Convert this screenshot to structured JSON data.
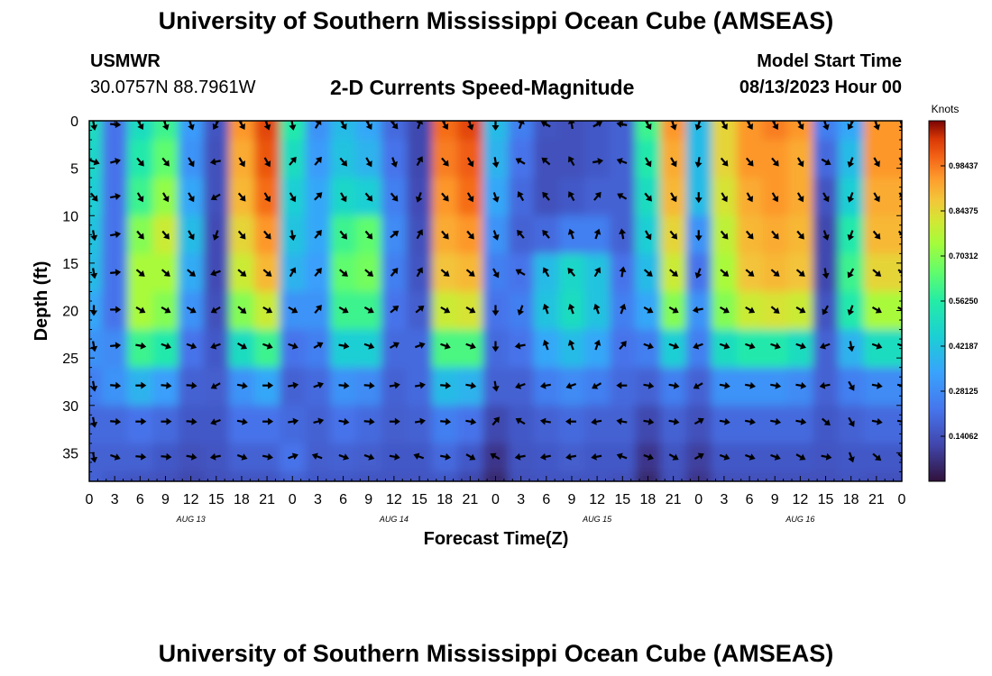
{
  "header": {
    "title_top": "University of Southern Mississippi Ocean Cube (AMSEAS)",
    "title_bottom": "University of Southern Mississippi Ocean Cube (AMSEAS)",
    "station": "USMWR",
    "coords": "30.0757N  88.7961W",
    "plot_title": "2-D Currents Speed-Magnitude",
    "model_start_label": "Model Start Time",
    "model_start_value": "08/13/2023 Hour 00"
  },
  "chart_data": {
    "type": "heatmap",
    "title": "2-D Currents Speed-Magnitude",
    "xlabel": "Forecast Time(Z)",
    "ylabel": "Depth (ft)",
    "x_ticks": [
      "0",
      "3",
      "6",
      "9",
      "12",
      "15",
      "18",
      "21",
      "0",
      "3",
      "6",
      "9",
      "12",
      "15",
      "18",
      "21",
      "0",
      "3",
      "6",
      "9",
      "12",
      "15",
      "18",
      "21",
      "0",
      "3",
      "6",
      "9",
      "12",
      "15",
      "18",
      "21",
      "0"
    ],
    "day_labels": [
      "AUG 13",
      "AUG 14",
      "AUG 15",
      "AUG 16"
    ],
    "y_ticks": [
      "0",
      "5",
      "10",
      "15",
      "20",
      "25",
      "30",
      "35"
    ],
    "ylim": [
      0,
      38
    ],
    "xlim_hours": [
      0,
      96
    ],
    "colorbar": {
      "units": "Knots",
      "range": [
        0,
        1.125
      ],
      "tick_values": [
        0.140625,
        0.28125,
        0.421875,
        0.5625,
        0.703125,
        0.84375,
        0.984375
      ],
      "tick_labels": [
        "0.14062",
        "0.28125",
        "0.42187",
        "0.56250",
        "0.70312",
        "0.84375",
        "0.98437"
      ]
    },
    "grid": false,
    "columns": [
      {
        "hour": 0,
        "speeds": [
          0.5,
          0.48,
          0.45,
          0.42,
          0.4,
          0.35,
          0.3,
          0.25,
          0.2,
          0.18,
          0.18
        ]
      },
      {
        "hour": 3,
        "speeds": [
          0.22,
          0.22,
          0.22,
          0.22,
          0.22,
          0.22,
          0.28,
          0.3,
          0.2,
          0.18,
          0.16
        ]
      },
      {
        "hour": 6,
        "speeds": [
          0.5,
          0.55,
          0.6,
          0.7,
          0.75,
          0.75,
          0.6,
          0.38,
          0.22,
          0.18,
          0.15
        ]
      },
      {
        "hour": 9,
        "speeds": [
          0.6,
          0.65,
          0.72,
          0.8,
          0.75,
          0.7,
          0.55,
          0.33,
          0.2,
          0.16,
          0.14
        ]
      },
      {
        "hour": 12,
        "speeds": [
          0.32,
          0.3,
          0.35,
          0.4,
          0.36,
          0.3,
          0.22,
          0.18,
          0.16,
          0.14,
          0.12
        ]
      },
      {
        "hour": 15,
        "speeds": [
          0.15,
          0.14,
          0.14,
          0.13,
          0.13,
          0.14,
          0.16,
          0.17,
          0.16,
          0.15,
          0.14
        ]
      },
      {
        "hour": 18,
        "speeds": [
          0.95,
          0.92,
          0.9,
          0.85,
          0.8,
          0.7,
          0.5,
          0.3,
          0.22,
          0.18,
          0.15
        ]
      },
      {
        "hour": 21,
        "speeds": [
          1.05,
          1.03,
          1.0,
          0.95,
          0.9,
          0.8,
          0.6,
          0.35,
          0.22,
          0.18,
          0.15
        ]
      },
      {
        "hour": 24,
        "speeds": [
          0.55,
          0.5,
          0.45,
          0.42,
          0.38,
          0.3,
          0.22,
          0.18,
          0.2,
          0.22,
          0.18
        ]
      },
      {
        "hour": 27,
        "speeds": [
          0.3,
          0.32,
          0.35,
          0.35,
          0.33,
          0.3,
          0.25,
          0.2,
          0.18,
          0.17,
          0.16
        ]
      },
      {
        "hour": 30,
        "speeds": [
          0.4,
          0.42,
          0.48,
          0.6,
          0.65,
          0.6,
          0.45,
          0.3,
          0.22,
          0.18,
          0.16
        ]
      },
      {
        "hour": 33,
        "speeds": [
          0.35,
          0.38,
          0.45,
          0.65,
          0.68,
          0.6,
          0.45,
          0.28,
          0.2,
          0.17,
          0.15
        ]
      },
      {
        "hour": 36,
        "speeds": [
          0.2,
          0.22,
          0.25,
          0.28,
          0.25,
          0.22,
          0.2,
          0.18,
          0.17,
          0.16,
          0.15
        ]
      },
      {
        "hour": 39,
        "speeds": [
          0.12,
          0.12,
          0.13,
          0.14,
          0.15,
          0.17,
          0.2,
          0.2,
          0.18,
          0.16,
          0.15
        ]
      },
      {
        "hour": 42,
        "speeds": [
          1.0,
          0.98,
          0.95,
          0.92,
          0.88,
          0.8,
          0.62,
          0.4,
          0.25,
          0.2,
          0.16
        ]
      },
      {
        "hour": 45,
        "speeds": [
          1.05,
          1.02,
          1.0,
          0.95,
          0.9,
          0.82,
          0.62,
          0.38,
          0.22,
          0.16,
          0.12
        ]
      },
      {
        "hour": 48,
        "speeds": [
          0.4,
          0.38,
          0.35,
          0.3,
          0.25,
          0.22,
          0.2,
          0.18,
          0.12,
          0.08,
          0.05
        ]
      },
      {
        "hour": 51,
        "speeds": [
          0.25,
          0.22,
          0.2,
          0.18,
          0.22,
          0.25,
          0.22,
          0.18,
          0.16,
          0.15,
          0.14
        ]
      },
      {
        "hour": 54,
        "speeds": [
          0.15,
          0.14,
          0.14,
          0.2,
          0.4,
          0.42,
          0.35,
          0.25,
          0.18,
          0.16,
          0.15
        ]
      },
      {
        "hour": 57,
        "speeds": [
          0.14,
          0.14,
          0.16,
          0.25,
          0.48,
          0.5,
          0.4,
          0.28,
          0.2,
          0.17,
          0.15
        ]
      },
      {
        "hour": 60,
        "speeds": [
          0.16,
          0.16,
          0.18,
          0.25,
          0.42,
          0.42,
          0.35,
          0.25,
          0.18,
          0.16,
          0.15
        ]
      },
      {
        "hour": 63,
        "speeds": [
          0.18,
          0.18,
          0.18,
          0.18,
          0.22,
          0.25,
          0.22,
          0.2,
          0.18,
          0.16,
          0.14
        ]
      },
      {
        "hour": 66,
        "speeds": [
          0.6,
          0.55,
          0.5,
          0.45,
          0.4,
          0.35,
          0.25,
          0.18,
          0.12,
          0.08,
          0.05
        ]
      },
      {
        "hour": 69,
        "speeds": [
          0.95,
          0.92,
          0.9,
          0.85,
          0.8,
          0.7,
          0.45,
          0.25,
          0.18,
          0.15,
          0.14
        ]
      },
      {
        "hour": 72,
        "speeds": [
          0.4,
          0.4,
          0.4,
          0.3,
          0.22,
          0.3,
          0.25,
          0.18,
          0.14,
          0.1,
          0.08
        ]
      },
      {
        "hour": 75,
        "speeds": [
          0.85,
          0.85,
          0.82,
          0.78,
          0.75,
          0.7,
          0.5,
          0.3,
          0.2,
          0.16,
          0.14
        ]
      },
      {
        "hour": 78,
        "speeds": [
          0.95,
          0.95,
          0.92,
          0.9,
          0.88,
          0.8,
          0.55,
          0.3,
          0.2,
          0.16,
          0.14
        ]
      },
      {
        "hour": 81,
        "speeds": [
          0.98,
          0.95,
          0.95,
          0.92,
          0.9,
          0.82,
          0.55,
          0.3,
          0.2,
          0.16,
          0.14
        ]
      },
      {
        "hour": 84,
        "speeds": [
          0.95,
          0.92,
          0.92,
          0.9,
          0.88,
          0.8,
          0.5,
          0.28,
          0.2,
          0.16,
          0.14
        ]
      },
      {
        "hour": 87,
        "speeds": [
          0.25,
          0.2,
          0.15,
          0.12,
          0.12,
          0.15,
          0.18,
          0.18,
          0.16,
          0.15,
          0.14
        ]
      },
      {
        "hour": 90,
        "speeds": [
          0.35,
          0.4,
          0.45,
          0.55,
          0.6,
          0.55,
          0.38,
          0.25,
          0.18,
          0.16,
          0.15
        ]
      },
      {
        "hour": 93,
        "speeds": [
          0.95,
          0.95,
          0.92,
          0.9,
          0.85,
          0.75,
          0.5,
          0.28,
          0.2,
          0.16,
          0.14
        ]
      },
      {
        "hour": 96,
        "speeds": [
          0.95,
          0.95,
          0.92,
          0.9,
          0.85,
          0.75,
          0.5,
          0.28,
          0.2,
          0.16,
          0.14
        ]
      }
    ],
    "row_depths_ft": [
      0,
      4,
      8,
      12,
      16,
      20,
      24,
      28,
      32,
      36,
      38
    ],
    "arrow_depths_ft": [
      0,
      4.3,
      8,
      12,
      16,
      19.9,
      23.7,
      27.9,
      31.7,
      35.4
    ],
    "arrow_directions_deg": [
      [
        170,
        110,
        140,
        170,
        170,
        180,
        170,
        170,
        170,
        170
      ],
      [
        95,
        75,
        80,
        80,
        85,
        90,
        85,
        95,
        95,
        110
      ],
      [
        150,
        140,
        150,
        140,
        130,
        120,
        100,
        90,
        90,
        95
      ],
      [
        160,
        140,
        150,
        140,
        130,
        120,
        110,
        95,
        90,
        95
      ],
      [
        160,
        150,
        150,
        150,
        130,
        120,
        110,
        95,
        95,
        100
      ],
      [
        210,
        260,
        240,
        200,
        250,
        240,
        250,
        240,
        250,
        260
      ],
      [
        150,
        150,
        140,
        140,
        130,
        130,
        120,
        100,
        100,
        110
      ],
      [
        160,
        150,
        150,
        140,
        130,
        120,
        110,
        90,
        90,
        100
      ],
      [
        170,
        40,
        150,
        170,
        30,
        120,
        110,
        80,
        80,
        70
      ],
      [
        30,
        40,
        45,
        40,
        40,
        40,
        60,
        70,
        75,
        290
      ],
      [
        150,
        140,
        150,
        140,
        130,
        120,
        100,
        95,
        100,
        110
      ],
      [
        150,
        150,
        140,
        140,
        130,
        120,
        110,
        95,
        95,
        110
      ],
      [
        140,
        160,
        140,
        50,
        40,
        50,
        60,
        80,
        90,
        100
      ],
      [
        20,
        30,
        200,
        30,
        30,
        50,
        70,
        80,
        80,
        290
      ],
      [
        150,
        140,
        140,
        140,
        130,
        120,
        110,
        95,
        95,
        100
      ],
      [
        160,
        150,
        150,
        140,
        130,
        120,
        110,
        100,
        100,
        120
      ],
      [
        180,
        170,
        160,
        160,
        150,
        180,
        180,
        170,
        40,
        300
      ],
      [
        20,
        300,
        330,
        320,
        300,
        200,
        260,
        250,
        300,
        260
      ],
      [
        300,
        310,
        320,
        320,
        330,
        340,
        340,
        260,
        280,
        260
      ],
      [
        350,
        330,
        330,
        340,
        320,
        340,
        340,
        250,
        270,
        260
      ],
      [
        60,
        80,
        40,
        20,
        30,
        340,
        20,
        240,
        260,
        260
      ],
      [
        280,
        290,
        300,
        350,
        10,
        20,
        40,
        270,
        280,
        290
      ],
      [
        150,
        150,
        140,
        150,
        130,
        120,
        110,
        100,
        100,
        110
      ],
      [
        160,
        150,
        150,
        140,
        130,
        120,
        110,
        100,
        100,
        120
      ],
      [
        200,
        190,
        180,
        180,
        200,
        260,
        250,
        240,
        60,
        60
      ],
      [
        150,
        140,
        150,
        140,
        130,
        120,
        110,
        100,
        100,
        110
      ],
      [
        150,
        140,
        150,
        140,
        130,
        120,
        110,
        100,
        100,
        110
      ],
      [
        150,
        140,
        150,
        140,
        130,
        130,
        110,
        100,
        100,
        110
      ],
      [
        150,
        150,
        150,
        140,
        130,
        120,
        110,
        100,
        100,
        120
      ],
      [
        160,
        120,
        150,
        160,
        170,
        210,
        250,
        260,
        130,
        100
      ],
      [
        210,
        200,
        200,
        200,
        210,
        200,
        170,
        150,
        150,
        160
      ],
      [
        160,
        150,
        150,
        140,
        130,
        120,
        110,
        100,
        100,
        130
      ],
      [
        160,
        150,
        150,
        140,
        130,
        120,
        110,
        100,
        100,
        130
      ]
    ]
  }
}
